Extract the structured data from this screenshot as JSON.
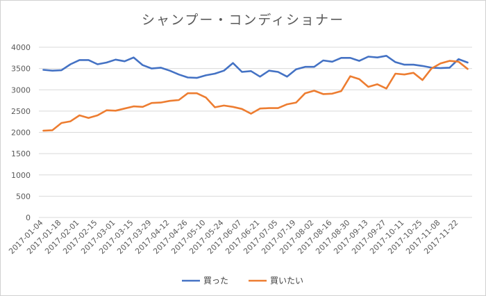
{
  "chart_data": {
    "type": "line",
    "title": "シャンプー・コンディショナー",
    "xlabel": "",
    "ylabel": "",
    "ylim": [
      0,
      4000
    ],
    "yticks": [
      0,
      500,
      1000,
      1500,
      2000,
      2500,
      3000,
      3500,
      4000
    ],
    "grid": true,
    "legend_position": "bottom",
    "x_tick_labels": [
      "2017-01-04",
      "2017-01-18",
      "2017-02-01",
      "2017-02-15",
      "2017-03-01",
      "2017-03-15",
      "2017-03-29",
      "2017-04-12",
      "2017-04-26",
      "2017-05-10",
      "2017-05-24",
      "2017-06-07",
      "2017-06-21",
      "2017-07-05",
      "2017-07-19",
      "2017-08-02",
      "2017-08-16",
      "2017-08-30",
      "2017-09-13",
      "2017-09-27",
      "2017-10-11",
      "2017-10-25",
      "2017-11-08",
      "2017-11-22"
    ],
    "series": [
      {
        "name": "買った",
        "color": "#4472c4",
        "values": [
          3470,
          3450,
          3460,
          3600,
          3700,
          3700,
          3600,
          3640,
          3710,
          3670,
          3760,
          3580,
          3500,
          3520,
          3450,
          3360,
          3290,
          3280,
          3340,
          3380,
          3450,
          3630,
          3420,
          3440,
          3310,
          3450,
          3420,
          3310,
          3480,
          3540,
          3540,
          3690,
          3660,
          3750,
          3750,
          3680,
          3780,
          3760,
          3800,
          3650,
          3590,
          3590,
          3560,
          3520,
          3510,
          3520,
          3720,
          3640
        ]
      },
      {
        "name": "買いたい",
        "color": "#ed7d31",
        "values": [
          2040,
          2050,
          2220,
          2260,
          2400,
          2340,
          2400,
          2520,
          2510,
          2560,
          2610,
          2600,
          2690,
          2700,
          2740,
          2760,
          2920,
          2920,
          2820,
          2590,
          2630,
          2600,
          2550,
          2440,
          2560,
          2570,
          2570,
          2660,
          2700,
          2920,
          2980,
          2900,
          2910,
          2970,
          3320,
          3250,
          3070,
          3130,
          3030,
          3380,
          3360,
          3400,
          3230,
          3500,
          3620,
          3680,
          3660,
          3490
        ]
      }
    ]
  }
}
